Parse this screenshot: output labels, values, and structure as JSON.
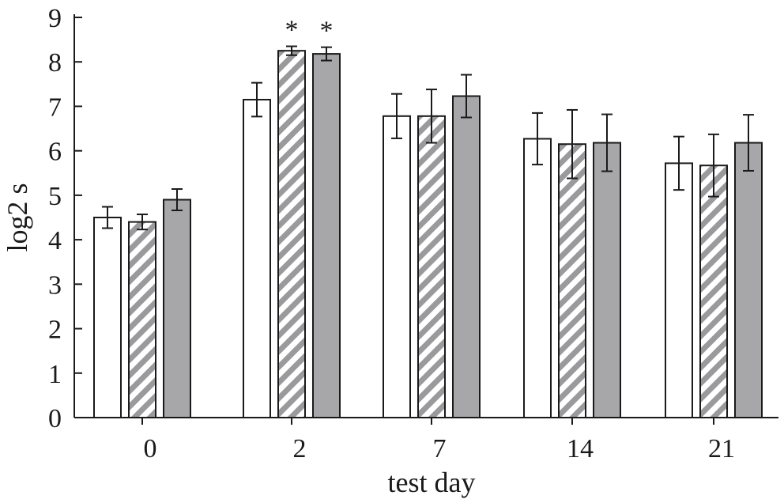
{
  "chart_data": {
    "type": "bar",
    "title": "",
    "xlabel": "test day",
    "ylabel": "log2 s",
    "ylim": [
      0,
      9
    ],
    "yticks": [
      "0",
      "1",
      "2",
      "3",
      "4",
      "5",
      "6",
      "7",
      "8",
      "9"
    ],
    "categories": [
      "0",
      "2",
      "7",
      "14",
      "21"
    ],
    "grid": false,
    "legend": "none",
    "series": [
      {
        "style": "open",
        "values": [
          4.5,
          7.15,
          6.78,
          6.27,
          5.72
        ],
        "errors": [
          0.24,
          0.38,
          0.5,
          0.58,
          0.6
        ],
        "colors": {
          "fill": "#ffffff",
          "stroke": "#1a1a1a"
        }
      },
      {
        "style": "hatched",
        "values": [
          4.4,
          8.25,
          6.78,
          6.15,
          5.67
        ],
        "errors": [
          0.17,
          0.1,
          0.6,
          0.77,
          0.7
        ],
        "colors": {
          "fill": "#ffffff",
          "hatch": "#9a9a9d",
          "stroke": "#1a1a1a"
        }
      },
      {
        "style": "filled",
        "values": [
          4.9,
          8.18,
          7.23,
          6.18,
          6.18
        ],
        "errors": [
          0.24,
          0.15,
          0.48,
          0.64,
          0.63
        ],
        "colors": {
          "fill": "#a7a7aa",
          "stroke": "#1a1a1a"
        }
      }
    ],
    "annotations": [
      {
        "text": "*",
        "category": "2",
        "series_index": 1
      },
      {
        "text": "*",
        "category": "2",
        "series_index": 2
      }
    ]
  }
}
